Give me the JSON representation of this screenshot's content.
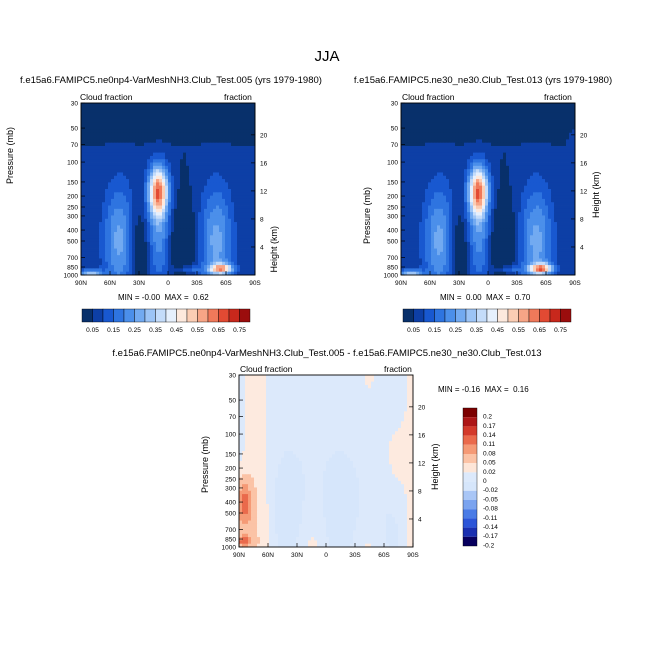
{
  "suptitle": "JJA",
  "plots": [
    {
      "title": "f.e15a6.FAMIPC5.ne0np4-VarMeshNH3.Club_Test.005 (yrs 1979-1980)",
      "left_label": "Cloud fraction",
      "right_label": "fraction",
      "ylabel_left": "Pressure (mb)",
      "ylabel_right": "Height (km)",
      "minmax": "MIN = -0.00  MAX =  0.62"
    },
    {
      "title": "f.e15a6.FAMIPC5.ne30_ne30.Club_Test.013 (yrs 1979-1980)",
      "left_label": "Cloud fraction",
      "right_label": "fraction",
      "ylabel_left": "Pressure (mb)",
      "ylabel_right": "Height (km)",
      "minmax": "MIN =  0.00  MAX =  0.70"
    },
    {
      "title": "f.e15a6.FAMIPC5.ne0np4-VarMeshNH3.Club_Test.005 - f.e15a6.FAMIPC5.ne30_ne30.Club_Test.013",
      "left_label": "Cloud fraction",
      "right_label": "fraction",
      "ylabel_left": "Pressure (mb)",
      "ylabel_right": "Height (km)",
      "minmax": "MIN = -0.16  MAX =  0.16"
    }
  ],
  "colors": {
    "seq": [
      "#08306b",
      "#0d3fa6",
      "#1858d0",
      "#2e74e0",
      "#4b8fea",
      "#72aaf1",
      "#9cc4f6",
      "#c4dcfa",
      "#e6f0fd",
      "#fde9dd",
      "#fbcdb4",
      "#f7a586",
      "#f0795a",
      "#e24a33",
      "#c8281c",
      "#9b0d0d"
    ],
    "diff": [
      "#08005e",
      "#1a2fb0",
      "#2c55d8",
      "#4a7be6",
      "#7aa3ef",
      "#a9c6f6",
      "#d6e6fb",
      "#ffffff",
      "#fde6d8",
      "#fbc3a6",
      "#f59a76",
      "#ea6a4c",
      "#d33a2b",
      "#ad1717",
      "#7c0000"
    ]
  },
  "chart_data": [
    {
      "type": "heatmap",
      "title": "f.e15a6.FAMIPC5.ne0np4-VarMeshNH3.Club_Test.005 (yrs 1979-1980)",
      "x_ticks": [
        "90N",
        "60N",
        "30N",
        "0",
        "30S",
        "60S",
        "90S"
      ],
      "y_ticks_pressure": [
        "30",
        "50",
        "70",
        "100",
        "150",
        "200",
        "250",
        "300",
        "400",
        "500",
        "700",
        "850",
        "1000"
      ],
      "y_ticks_height": [
        "20",
        "16",
        "12",
        "8",
        "4"
      ],
      "xlim": [
        90,
        -90
      ],
      "ylim": [
        1000,
        30
      ],
      "colorbar_labels": [
        "0.05",
        "0.15",
        "0.25",
        "0.35",
        "0.45",
        "0.55",
        "0.65",
        "0.75"
      ],
      "min": -0.0,
      "max": 0.62
    },
    {
      "type": "heatmap",
      "title": "f.e15a6.FAMIPC5.ne30_ne30.Club_Test.013 (yrs 1979-1980)",
      "x_ticks": [
        "90N",
        "60N",
        "30N",
        "0",
        "30S",
        "60S",
        "90S"
      ],
      "y_ticks_pressure": [
        "30",
        "50",
        "70",
        "100",
        "150",
        "200",
        "250",
        "300",
        "400",
        "500",
        "700",
        "850",
        "1000"
      ],
      "y_ticks_height": [
        "20",
        "16",
        "12",
        "8",
        "4"
      ],
      "xlim": [
        90,
        -90
      ],
      "ylim": [
        1000,
        30
      ],
      "colorbar_labels": [
        "0.05",
        "0.15",
        "0.25",
        "0.35",
        "0.45",
        "0.55",
        "0.65",
        "0.75"
      ],
      "min": 0.0,
      "max": 0.7
    },
    {
      "type": "heatmap",
      "title": "f.e15a6.FAMIPC5.ne0np4-VarMeshNH3.Club_Test.005 - f.e15a6.FAMIPC5.ne30_ne30.Club_Test.013",
      "x_ticks": [
        "90N",
        "60N",
        "30N",
        "0",
        "30S",
        "60S",
        "90S"
      ],
      "y_ticks_pressure": [
        "30",
        "50",
        "70",
        "100",
        "150",
        "200",
        "250",
        "300",
        "400",
        "500",
        "700",
        "850",
        "1000"
      ],
      "y_ticks_height": [
        "20",
        "16",
        "12",
        "8",
        "4"
      ],
      "xlim": [
        90,
        -90
      ],
      "ylim": [
        1000,
        30
      ],
      "colorbar_labels": [
        "0.2",
        "0.17",
        "0.14",
        "0.11",
        "0.08",
        "0.05",
        "0.02",
        "0",
        "-0.02",
        "-0.05",
        "-0.08",
        "-0.11",
        "-0.14",
        "-0.17",
        "-0.2"
      ],
      "min": -0.16,
      "max": 0.16
    }
  ]
}
